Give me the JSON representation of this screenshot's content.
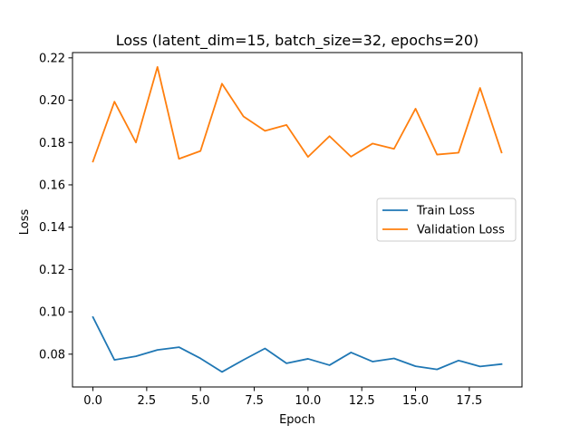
{
  "chart_data": {
    "type": "line",
    "title": "Loss (latent_dim=15, batch_size=32, epochs=20)",
    "xlabel": "Epoch",
    "ylabel": "Loss",
    "xlim": [
      -0.95,
      19.95
    ],
    "ylim": [
      0.0645,
      0.2225
    ],
    "xticks": [
      0.0,
      2.5,
      5.0,
      7.5,
      10.0,
      12.5,
      15.0,
      17.5
    ],
    "xtick_labels": [
      "0.0",
      "2.5",
      "5.0",
      "7.5",
      "10.0",
      "12.5",
      "15.0",
      "17.5"
    ],
    "yticks": [
      0.08,
      0.1,
      0.12,
      0.14,
      0.16,
      0.18,
      0.2,
      0.22
    ],
    "ytick_labels": [
      "0.08",
      "0.10",
      "0.12",
      "0.14",
      "0.16",
      "0.18",
      "0.20",
      "0.22"
    ],
    "grid": false,
    "legend_position": "center-right",
    "x": [
      0,
      1,
      2,
      3,
      4,
      5,
      6,
      7,
      8,
      9,
      10,
      11,
      12,
      13,
      14,
      15,
      16,
      17,
      18,
      19
    ],
    "series": [
      {
        "name": "Train Loss",
        "color": "#1f77b4",
        "values": [
          0.0975,
          0.0773,
          0.079,
          0.082,
          0.0833,
          0.078,
          0.0716,
          0.0773,
          0.0827,
          0.0757,
          0.0778,
          0.0748,
          0.0808,
          0.0765,
          0.078,
          0.0743,
          0.0728,
          0.077,
          0.0742,
          0.0753
        ]
      },
      {
        "name": "Validation Loss",
        "color": "#ff7f0e",
        "values": [
          0.171,
          0.1993,
          0.18,
          0.2157,
          0.1723,
          0.176,
          0.2078,
          0.1923,
          0.1855,
          0.1883,
          0.1732,
          0.183,
          0.1733,
          0.1795,
          0.177,
          0.196,
          0.1743,
          0.1752,
          0.2058,
          0.1753
        ]
      }
    ]
  }
}
